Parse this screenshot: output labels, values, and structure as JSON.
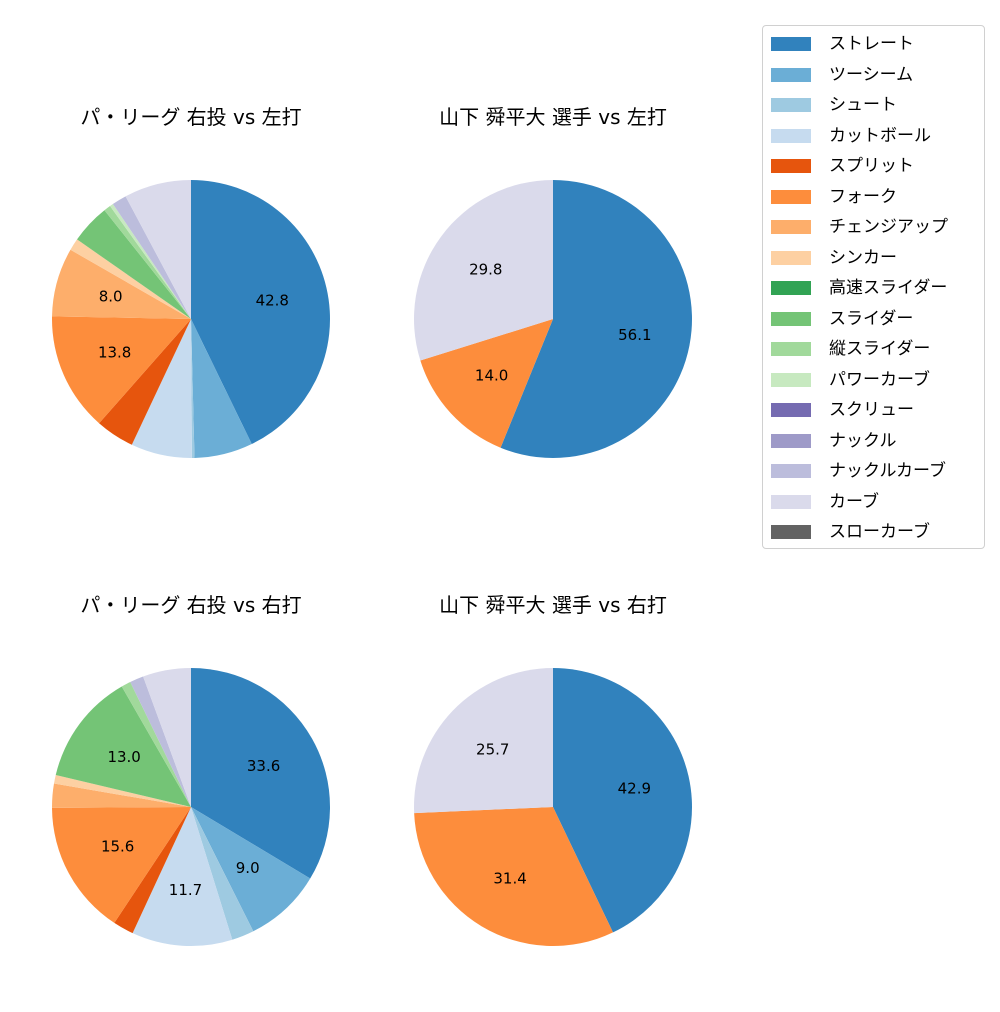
{
  "chart_data": [
    {
      "type": "pie",
      "title": "パ・リーグ 右投 vs 左打",
      "slices": [
        {
          "label": "ストレート",
          "value": 42.8,
          "text": "42.8"
        },
        {
          "label": "ツーシーム",
          "value": 6.8,
          "text": ""
        },
        {
          "label": "シュート",
          "value": 0.3,
          "text": ""
        },
        {
          "label": "カットボール",
          "value": 7.1,
          "text": ""
        },
        {
          "label": "スプリット",
          "value": 4.5,
          "text": ""
        },
        {
          "label": "フォーク",
          "value": 13.8,
          "text": "13.8"
        },
        {
          "label": "チェンジアップ",
          "value": 8.0,
          "text": "8.0"
        },
        {
          "label": "シンカー",
          "value": 1.4,
          "text": ""
        },
        {
          "label": "スライダー",
          "value": 4.6,
          "text": ""
        },
        {
          "label": "縦スライダー",
          "value": 0.8,
          "text": ""
        },
        {
          "label": "パワーカーブ",
          "value": 0.4,
          "text": ""
        },
        {
          "label": "ナックルカーブ",
          "value": 1.7,
          "text": ""
        },
        {
          "label": "カーブ",
          "value": 7.8,
          "text": ""
        }
      ]
    },
    {
      "type": "pie",
      "title": "山下 舜平大 選手 vs 左打",
      "slices": [
        {
          "label": "ストレート",
          "value": 56.1,
          "text": "56.1"
        },
        {
          "label": "フォーク",
          "value": 14.0,
          "text": "14.0"
        },
        {
          "label": "カーブ",
          "value": 29.8,
          "text": "29.8"
        }
      ]
    },
    {
      "type": "pie",
      "title": "パ・リーグ 右投 vs 右打",
      "slices": [
        {
          "label": "ストレート",
          "value": 33.6,
          "text": "33.6"
        },
        {
          "label": "ツーシーム",
          "value": 9.0,
          "text": "9.0"
        },
        {
          "label": "シュート",
          "value": 2.6,
          "text": ""
        },
        {
          "label": "カットボール",
          "value": 11.7,
          "text": "11.7"
        },
        {
          "label": "スプリット",
          "value": 2.4,
          "text": ""
        },
        {
          "label": "フォーク",
          "value": 15.6,
          "text": "15.6"
        },
        {
          "label": "チェンジアップ",
          "value": 2.8,
          "text": ""
        },
        {
          "label": "シンカー",
          "value": 1.0,
          "text": ""
        },
        {
          "label": "スライダー",
          "value": 13.0,
          "text": "13.0"
        },
        {
          "label": "縦スライダー",
          "value": 1.1,
          "text": ""
        },
        {
          "label": "ナックルカーブ",
          "value": 1.6,
          "text": ""
        },
        {
          "label": "カーブ",
          "value": 5.6,
          "text": ""
        }
      ]
    },
    {
      "type": "pie",
      "title": "山下 舜平大 選手 vs 右打",
      "slices": [
        {
          "label": "ストレート",
          "value": 42.9,
          "text": "42.9"
        },
        {
          "label": "フォーク",
          "value": 31.4,
          "text": "31.4"
        },
        {
          "label": "カーブ",
          "value": 25.7,
          "text": "25.7"
        }
      ]
    }
  ],
  "legend": {
    "placement": "right",
    "items": [
      {
        "label": "ストレート",
        "color": "#3182bd"
      },
      {
        "label": "ツーシーム",
        "color": "#6baed6"
      },
      {
        "label": "シュート",
        "color": "#9ecae1"
      },
      {
        "label": "カットボール",
        "color": "#c6dbef"
      },
      {
        "label": "スプリット",
        "color": "#e6550d"
      },
      {
        "label": "フォーク",
        "color": "#fd8d3c"
      },
      {
        "label": "チェンジアップ",
        "color": "#fdae6b"
      },
      {
        "label": "シンカー",
        "color": "#fdd0a2"
      },
      {
        "label": "高速スライダー",
        "color": "#31a354"
      },
      {
        "label": "スライダー",
        "color": "#74c476"
      },
      {
        "label": "縦スライダー",
        "color": "#a1d99b"
      },
      {
        "label": "パワーカーブ",
        "color": "#c7e9c0"
      },
      {
        "label": "スクリュー",
        "color": "#756bb1"
      },
      {
        "label": "ナックル",
        "color": "#9e9ac8"
      },
      {
        "label": "ナックルカーブ",
        "color": "#bcbddc"
      },
      {
        "label": "カーブ",
        "color": "#dadaeb"
      },
      {
        "label": "スローカーブ",
        "color": "#636363"
      }
    ]
  }
}
